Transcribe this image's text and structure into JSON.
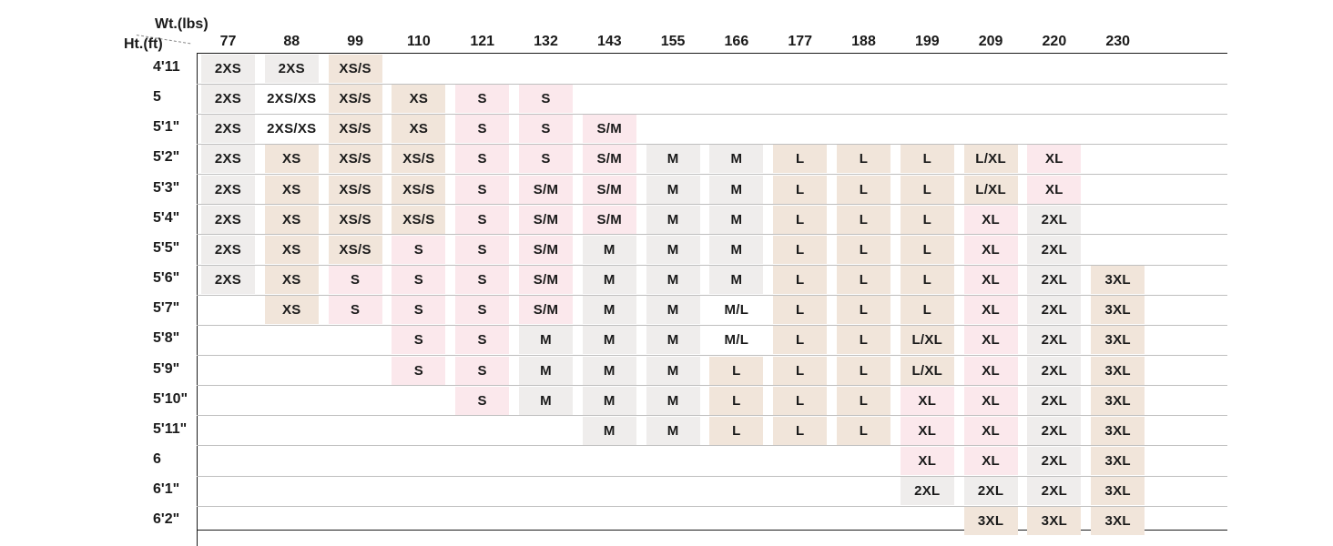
{
  "chart_data": {
    "type": "table",
    "weight_axis_label": "Wt.(lbs)",
    "height_axis_label": "Ht.(ft)",
    "weights": [
      "77",
      "88",
      "99",
      "110",
      "121",
      "132",
      "143",
      "155",
      "166",
      "177",
      "188",
      "199",
      "209",
      "220",
      "230"
    ],
    "heights": [
      "4'11",
      "5",
      "5'1\"",
      "5'2\"",
      "5'3\"",
      "5'4\"",
      "5'5\"",
      "5'6\"",
      "5'7\"",
      "5'8\"",
      "5'9\"",
      "5'10\"",
      "5'11\"",
      "6",
      "6'1\"",
      "6'2\""
    ],
    "sizes": [
      [
        "2XS",
        "2XS",
        "XS/S",
        "",
        "",
        "",
        "",
        "",
        "",
        "",
        "",
        "",
        "",
        "",
        ""
      ],
      [
        "2XS",
        "2XS/XS",
        "XS/S",
        "XS",
        "S",
        "S",
        "",
        "",
        "",
        "",
        "",
        "",
        "",
        "",
        ""
      ],
      [
        "2XS",
        "2XS/XS",
        "XS/S",
        "XS",
        "S",
        "S",
        "S/M",
        "",
        "",
        "",
        "",
        "",
        "",
        "",
        ""
      ],
      [
        "2XS",
        "XS",
        "XS/S",
        "XS/S",
        "S",
        "S",
        "S/M",
        "M",
        "M",
        "L",
        "L",
        "L",
        "L/XL",
        "XL",
        ""
      ],
      [
        "2XS",
        "XS",
        "XS/S",
        "XS/S",
        "S",
        "S/M",
        "S/M",
        "M",
        "M",
        "L",
        "L",
        "L",
        "L/XL",
        "XL",
        ""
      ],
      [
        "2XS",
        "XS",
        "XS/S",
        "XS/S",
        "S",
        "S/M",
        "S/M",
        "M",
        "M",
        "L",
        "L",
        "L",
        "XL",
        "2XL",
        ""
      ],
      [
        "2XS",
        "XS",
        "XS/S",
        "S",
        "S",
        "S/M",
        "M",
        "M",
        "M",
        "L",
        "L",
        "L",
        "XL",
        "2XL",
        ""
      ],
      [
        "2XS",
        "XS",
        "S",
        "S",
        "S",
        "S/M",
        "M",
        "M",
        "M",
        "L",
        "L",
        "L",
        "XL",
        "2XL",
        "3XL"
      ],
      [
        "",
        "XS",
        "S",
        "S",
        "S",
        "S/M",
        "M",
        "M",
        "M/L",
        "L",
        "L",
        "L",
        "XL",
        "2XL",
        "3XL"
      ],
      [
        "",
        "",
        "",
        "S",
        "S",
        "M",
        "M",
        "M",
        "M/L",
        "L",
        "L",
        "L/XL",
        "XL",
        "2XL",
        "3XL"
      ],
      [
        "",
        "",
        "",
        "S",
        "S",
        "M",
        "M",
        "M",
        "L",
        "L",
        "L",
        "L/XL",
        "XL",
        "2XL",
        "3XL"
      ],
      [
        "",
        "",
        "",
        "",
        "S",
        "M",
        "M",
        "M",
        "L",
        "L",
        "L",
        "XL",
        "XL",
        "2XL",
        "3XL"
      ],
      [
        "",
        "",
        "",
        "",
        "",
        "",
        "M",
        "M",
        "L",
        "L",
        "L",
        "XL",
        "XL",
        "2XL",
        "3XL"
      ],
      [
        "",
        "",
        "",
        "",
        "",
        "",
        "",
        "",
        "",
        "",
        "",
        "XL",
        "XL",
        "2XL",
        "3XL"
      ],
      [
        "",
        "",
        "",
        "",
        "",
        "",
        "",
        "",
        "",
        "",
        "",
        "2XL",
        "2XL",
        "2XL",
        "3XL"
      ],
      [
        "",
        "",
        "",
        "",
        "",
        "",
        "",
        "",
        "",
        "",
        "",
        "",
        "3XL",
        "3XL",
        "3XL"
      ]
    ],
    "size_colors": {
      "2XS": "#efedec",
      "2XS/XS": "#ffffff",
      "XS": "#f1e5da",
      "XS/S": "#f1e5da",
      "S": "#fbe8ec",
      "S/M": "#fbe8ec",
      "M": "#efedec",
      "M/L": "#ffffff",
      "L": "#f1e5da",
      "L/XL": "#f1e5da",
      "XL": "#fbe8ec",
      "2XL": "#efedec",
      "3XL": "#f1e5da"
    },
    "grid": true
  }
}
